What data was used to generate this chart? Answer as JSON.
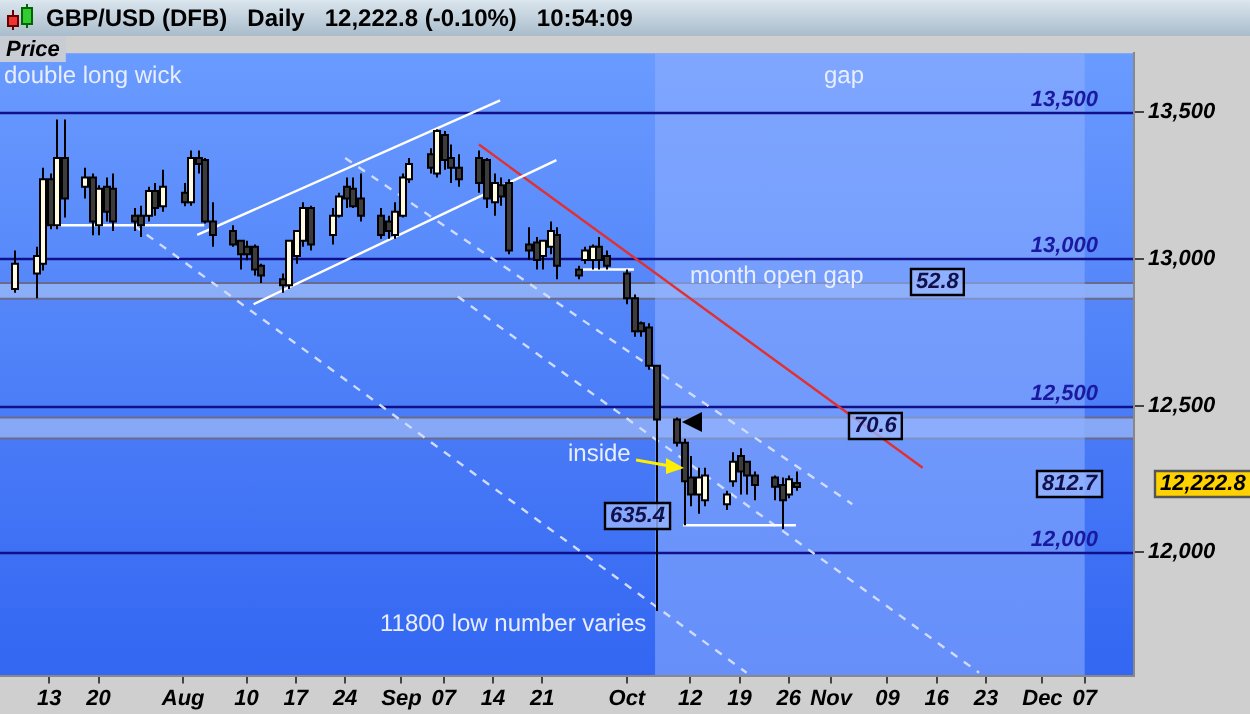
{
  "chart_data": {
    "type": "candlestick",
    "title": "GBP/USD (DFB)   Daily   12,222.8 (-0.10%)   10:54:09",
    "ylabel": "Price",
    "x": [
      "--07-08",
      "--07-11",
      "--07-12",
      "--07-13",
      "--07-14",
      "--07-15",
      "--07-18",
      "--07-19",
      "--07-20",
      "--07-21",
      "--07-22",
      "--07-25",
      "--07-26",
      "--07-27",
      "--07-28",
      "--07-29",
      "--08-01",
      "--08-02",
      "--08-03",
      "--08-04",
      "--08-05",
      "--08-08",
      "--08-09",
      "--08-10",
      "--08-11",
      "--08-12",
      "--08-15",
      "--08-16",
      "--08-17",
      "--08-18",
      "--08-19",
      "--08-22",
      "--08-23",
      "--08-24",
      "--08-25",
      "--08-26",
      "--08-29",
      "--08-30",
      "--08-31",
      "--09-01",
      "--09-02",
      "--09-05",
      "--09-06",
      "--09-07",
      "--09-08",
      "--09-09",
      "--09-12",
      "--09-13",
      "--09-14",
      "--09-15",
      "--09-16",
      "--09-19",
      "--09-20",
      "--09-21",
      "--09-22",
      "--09-23",
      "--09-26",
      "--09-27",
      "--09-28",
      "--09-29",
      "--09-30",
      "--10-03",
      "--10-04",
      "--10-05",
      "--10-06",
      "--10-07",
      "--10-10",
      "--10-11",
      "--10-12",
      "--10-13",
      "--10-14",
      "--10-17",
      "--10-18",
      "--10-19",
      "--10-20",
      "--10-21",
      "--10-24",
      "--10-25",
      "--10-26",
      "--10-27"
    ],
    "ohlc": [
      [
        12897,
        13028,
        12884,
        12983
      ],
      [
        12950,
        13041,
        12865,
        13009
      ],
      [
        12983,
        13310,
        12960,
        13271
      ],
      [
        13271,
        13290,
        13100,
        13114
      ],
      [
        13114,
        13474,
        13100,
        13343
      ],
      [
        13343,
        13474,
        13140,
        13205
      ],
      [
        13245,
        13310,
        13205,
        13277
      ],
      [
        13277,
        13290,
        13080,
        13127
      ],
      [
        13114,
        13250,
        13080,
        13238
      ],
      [
        13245,
        13277,
        13127,
        13160
      ],
      [
        13238,
        13290,
        13094,
        13127
      ],
      [
        13146,
        13173,
        13094,
        13127
      ],
      [
        13146,
        13180,
        13074,
        13114
      ],
      [
        13146,
        13245,
        13127,
        13231
      ],
      [
        13231,
        13258,
        13146,
        13173
      ],
      [
        13179,
        13303,
        13160,
        13245
      ],
      [
        13225,
        13258,
        13179,
        13192
      ],
      [
        13192,
        13369,
        13180,
        13343
      ],
      [
        13343,
        13369,
        13290,
        13323
      ],
      [
        13336,
        13343,
        13120,
        13127
      ],
      [
        13127,
        13192,
        13041,
        13081
      ],
      [
        13094,
        13114,
        13041,
        13048
      ],
      [
        13061,
        13061,
        12963,
        13015
      ],
      [
        13041,
        13061,
        12995,
        13015
      ],
      [
        13041,
        13048,
        12943,
        12963
      ],
      [
        12976,
        12983,
        12917,
        12943
      ],
      [
        12930,
        12950,
        12884,
        12910
      ],
      [
        12910,
        13061,
        12897,
        13061
      ],
      [
        13009,
        13094,
        12983,
        13094
      ],
      [
        13061,
        13192,
        13041,
        13173
      ],
      [
        13173,
        13180,
        13028,
        13048
      ],
      [
        13081,
        13173,
        13048,
        13146
      ],
      [
        13146,
        13225,
        13140,
        13212
      ],
      [
        13245,
        13277,
        13173,
        13205
      ],
      [
        13238,
        13277,
        13173,
        13179
      ],
      [
        13205,
        13290,
        13127,
        13146
      ],
      [
        13146,
        13173,
        13068,
        13081
      ],
      [
        13127,
        13146,
        13068,
        13094
      ],
      [
        13081,
        13192,
        13068,
        13160
      ],
      [
        13146,
        13290,
        13140,
        13277
      ],
      [
        13271,
        13343,
        13258,
        13323
      ],
      [
        13356,
        13376,
        13290,
        13310
      ],
      [
        13290,
        13441,
        13277,
        13435
      ],
      [
        13421,
        13435,
        13303,
        13336
      ],
      [
        13343,
        13389,
        13258,
        13310
      ],
      [
        13310,
        13356,
        13245,
        13271
      ],
      [
        13343,
        13369,
        13225,
        13258
      ],
      [
        13336,
        13343,
        13173,
        13205
      ],
      [
        13192,
        13290,
        13146,
        13258
      ],
      [
        13250,
        13277,
        13180,
        13212
      ],
      [
        13258,
        13271,
        13015,
        13028
      ],
      [
        13048,
        13107,
        12996,
        13028
      ],
      [
        13055,
        13074,
        12963,
        12996
      ],
      [
        13009,
        13061,
        12963,
        13061
      ],
      [
        13041,
        13127,
        13015,
        13094
      ],
      [
        13081,
        13107,
        12930,
        12976
      ],
      [
        12963,
        12976,
        12930,
        12943
      ],
      [
        12996,
        13041,
        12983,
        13028
      ],
      [
        12996,
        13048,
        12963,
        13041
      ],
      [
        13041,
        13074,
        12963,
        12996
      ],
      [
        13009,
        13028,
        12963,
        12976
      ],
      [
        12950,
        12963,
        12845,
        12865
      ],
      [
        12865,
        12878,
        12734,
        12753
      ],
      [
        12780,
        12786,
        12734,
        12753
      ],
      [
        12766,
        12780,
        12622,
        12635
      ],
      [
        12635,
        12635,
        11800,
        12452
      ],
      [
        12452,
        12459,
        12360,
        12373
      ],
      [
        12373,
        12387,
        12092,
        12242
      ],
      [
        12255,
        12328,
        12157,
        12197
      ],
      [
        12197,
        12288,
        12131,
        12255
      ],
      [
        12177,
        12288,
        12157,
        12262
      ],
      [
        12164,
        12210,
        12144,
        12197
      ],
      [
        12242,
        12341,
        12223,
        12308
      ],
      [
        12328,
        12354,
        12197,
        12275
      ],
      [
        12308,
        12308,
        12197,
        12262
      ],
      [
        12262,
        12275,
        12177,
        12229
      ],
      [
        12255,
        12262,
        12177,
        12223
      ],
      [
        12229,
        12255,
        12079,
        12177
      ],
      [
        12197,
        12262,
        12184,
        12249
      ],
      [
        12236,
        12275,
        12210,
        12222.8
      ]
    ],
    "series": [
      {
        "type": "line",
        "x": [
          "--07-13",
          "--08-04"
        ],
        "values": [
          13114,
          13114
        ],
        "color": "#ffffff",
        "line_style": "solid"
      },
      {
        "type": "line",
        "x": [
          "--09-26",
          "--10-04"
        ],
        "values": [
          12963,
          12963
        ],
        "color": "#ffffff",
        "line_style": "solid"
      },
      {
        "type": "line",
        "x": [
          "--10-11",
          "--10-27"
        ],
        "values": [
          12092,
          12092
        ],
        "color": "#ffffff",
        "line_style": "solid"
      },
      {
        "type": "line",
        "x": [
          "--08-03",
          "--09-15"
        ],
        "values": [
          13081,
          13539
        ],
        "color": "#ffffff",
        "line_style": "solid"
      },
      {
        "type": "line",
        "x": [
          "--08-11",
          "--09-23"
        ],
        "values": [
          12845,
          13336
        ],
        "color": "#ffffff",
        "line_style": "solid"
      },
      {
        "type": "line",
        "x": [
          "--07-25",
          "--10-20"
        ],
        "values": [
          13114,
          11590
        ],
        "color": "#d0dcff",
        "line_style": "dashed"
      },
      {
        "type": "line",
        "x": [
          "--08-24",
          "--11-04"
        ],
        "values": [
          13343,
          12164
        ],
        "color": "#d0dcff",
        "line_style": "dashed"
      },
      {
        "type": "line",
        "x": [
          "--09-09",
          "--11-22"
        ],
        "values": [
          12871,
          11590
        ],
        "color": "#d0dcff",
        "line_style": "dashed"
      },
      {
        "type": "line",
        "x": [
          "--09-12",
          "--11-14"
        ],
        "values": [
          13389,
          12288
        ],
        "color": "#e03030",
        "line_style": "solid"
      }
    ],
    "marker": "none",
    "xlim": [
      "--07-06",
      "--12-14"
    ],
    "xticks": [
      {
        "value": "--07-13",
        "label": "13"
      },
      {
        "value": "--07-20",
        "label": "20"
      },
      {
        "value": "--08-01",
        "label": "Aug"
      },
      {
        "value": "--08-10",
        "label": "10"
      },
      {
        "value": "--08-17",
        "label": "17"
      },
      {
        "value": "--08-24",
        "label": "24"
      },
      {
        "value": "--09-01",
        "label": "Sep"
      },
      {
        "value": "--09-07",
        "label": "07"
      },
      {
        "value": "--09-14",
        "label": "14"
      },
      {
        "value": "--09-21",
        "label": "21"
      },
      {
        "value": "--10-03",
        "label": "Oct"
      },
      {
        "value": "--10-12",
        "label": "12"
      },
      {
        "value": "--10-19",
        "label": "19"
      },
      {
        "value": "--10-26",
        "label": "26"
      },
      {
        "value": "--11-01",
        "label": "Nov"
      },
      {
        "value": "--11-09",
        "label": "09"
      },
      {
        "value": "--11-16",
        "label": "16"
      },
      {
        "value": "--11-23",
        "label": "23"
      },
      {
        "value": "--12-01",
        "label": "Dec"
      },
      {
        "value": "--12-07",
        "label": "07"
      }
    ],
    "ylim": [
      11580,
      13700
    ],
    "yticks": [
      {
        "value": 12000,
        "label": "12,000"
      },
      {
        "value": 12500,
        "label": "12,500"
      },
      {
        "value": 13000,
        "label": "13,000"
      },
      {
        "value": 13500,
        "label": "13,500"
      }
    ],
    "ref_lines": [
      {
        "axis": "y",
        "value": 13500,
        "label": "13,500",
        "color": "#10108a"
      },
      {
        "axis": "y",
        "value": 13000,
        "label": "13,000",
        "color": "#10108a"
      },
      {
        "axis": "y",
        "value": 12500,
        "label": "12,500",
        "color": "#10108a"
      },
      {
        "axis": "y",
        "value": 12000,
        "label": "12,000",
        "color": "#10108a"
      }
    ],
    "bands": [
      {
        "axis": "y",
        "from": 12864,
        "to": 12917,
        "color": "#b8cdf5"
      },
      {
        "axis": "y",
        "from": 12388,
        "to": 12459,
        "color": "#b8cdf5"
      },
      {
        "axis": "x",
        "from": "--10-07",
        "to": "--12-07",
        "color": "#8fb0ff"
      }
    ],
    "annotations": [
      "double long wick",
      "gap",
      "month open gap",
      "52.8",
      "70.6",
      "inside",
      "635.4",
      "812.7",
      "11800 low number varies",
      "12,222.8"
    ]
  }
}
